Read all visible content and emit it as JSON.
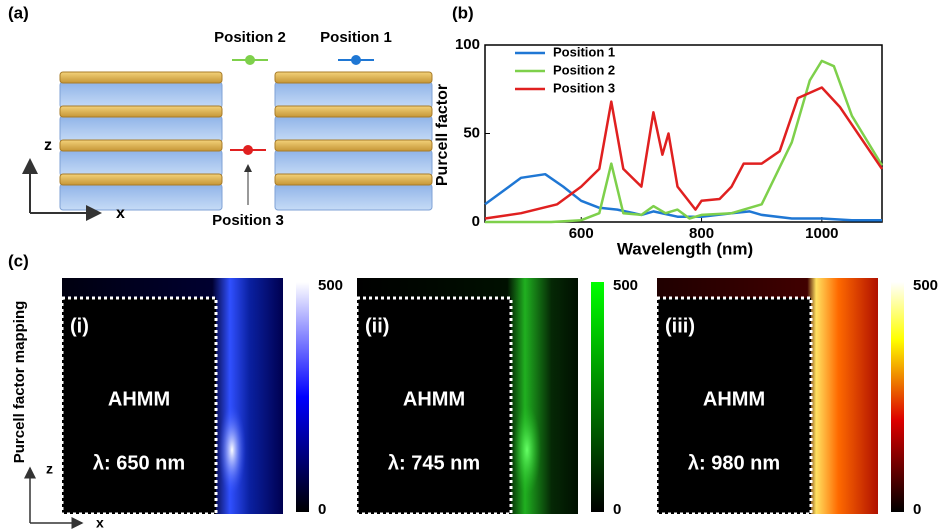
{
  "panel_a": {
    "label": "(a)",
    "position_1": "Position 1",
    "position_2": "Position 2",
    "position_3": "Position 3",
    "axis_z": "z",
    "axis_x": "x"
  },
  "chart_data": {
    "type": "line",
    "panel_label": "(b)",
    "xlabel": "Wavelength (nm)",
    "ylabel": "Purcell factor",
    "xlim": [
      440,
      1100
    ],
    "xticks": [
      600,
      800,
      1000
    ],
    "ylim": [
      0,
      100
    ],
    "yticks": [
      0,
      50,
      100
    ],
    "legend": "upper left",
    "series": [
      {
        "name": "Position 1",
        "color": "#1f77d4",
        "x": [
          440,
          480,
          500,
          540,
          570,
          600,
          630,
          660,
          700,
          720,
          760,
          800,
          850,
          880,
          900,
          950,
          1000,
          1050,
          1100
        ],
        "values": [
          10,
          20,
          25,
          27,
          20,
          12,
          8,
          7,
          4,
          6,
          3,
          3,
          5,
          6,
          4,
          2,
          2,
          1,
          1
        ]
      },
      {
        "name": "Position 2",
        "color": "#7ed04b",
        "x": [
          440,
          550,
          600,
          630,
          650,
          670,
          700,
          720,
          740,
          760,
          780,
          800,
          850,
          900,
          950,
          980,
          1000,
          1020,
          1050,
          1100
        ],
        "values": [
          0,
          0,
          1,
          5,
          33,
          5,
          4,
          9,
          5,
          7,
          2,
          4,
          5,
          10,
          45,
          80,
          91,
          88,
          60,
          32
        ]
      },
      {
        "name": "Position 3",
        "color": "#e02020",
        "x": [
          440,
          500,
          560,
          600,
          630,
          650,
          670,
          700,
          720,
          735,
          745,
          760,
          790,
          800,
          830,
          850,
          870,
          900,
          930,
          960,
          1000,
          1030,
          1060,
          1100
        ],
        "values": [
          2,
          5,
          10,
          20,
          30,
          68,
          30,
          20,
          62,
          38,
          50,
          20,
          7,
          12,
          13,
          20,
          33,
          33,
          40,
          70,
          76,
          65,
          50,
          30
        ]
      }
    ]
  },
  "panel_c": {
    "label": "(c)",
    "ylabel": "Purcell factor mapping",
    "axis_z": "z",
    "axis_x": "x",
    "maps": [
      {
        "index": "(i)",
        "material": "AHMM",
        "wavelength": "λ: 650 nm",
        "cbar_max": "500",
        "cbar_min": "0"
      },
      {
        "index": "(ii)",
        "material": "AHMM",
        "wavelength": "λ: 745 nm",
        "cbar_max": "500",
        "cbar_min": "0"
      },
      {
        "index": "(iii)",
        "material": "AHMM",
        "wavelength": "λ: 980 nm",
        "cbar_max": "500",
        "cbar_min": "0"
      }
    ]
  }
}
